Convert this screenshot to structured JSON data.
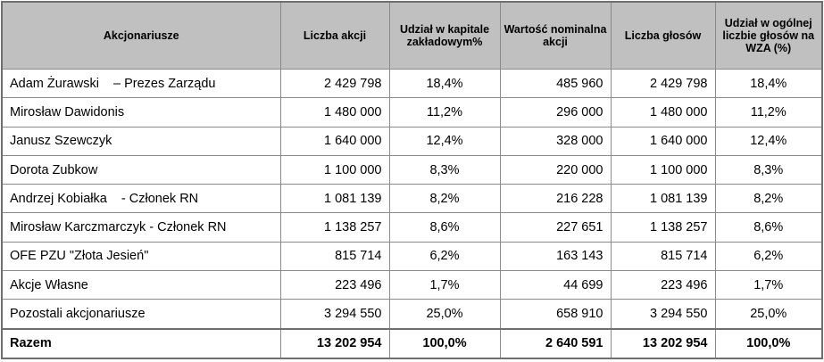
{
  "headers": {
    "c1": "Akcjonariusze",
    "c2": "Liczba akcji",
    "c3": "Udział w kapitale zakładowym%",
    "c4": "Wartość nominalna akcji",
    "c5": "Liczba głosów",
    "c6": "Udział w ogólnej liczbie głosów na WZA (%)"
  },
  "rows": [
    {
      "name": "Adam Żurawski    – Prezes Zarządu",
      "shares": "2 429 798",
      "capital_pct": "18,4%",
      "nominal": "485 960",
      "votes": "2 429 798",
      "votes_pct": "18,4%"
    },
    {
      "name": "Mirosław Dawidonis",
      "shares": "1 480 000",
      "capital_pct": "11,2%",
      "nominal": "296 000",
      "votes": "1 480 000",
      "votes_pct": "11,2%"
    },
    {
      "name": "Janusz Szewczyk",
      "shares": "1 640 000",
      "capital_pct": "12,4%",
      "nominal": "328 000",
      "votes": "1 640 000",
      "votes_pct": "12,4%"
    },
    {
      "name": "Dorota Zubkow",
      "shares": "1 100 000",
      "capital_pct": "8,3%",
      "nominal": "220 000",
      "votes": "1 100 000",
      "votes_pct": "8,3%"
    },
    {
      "name": "Andrzej Kobiałka    - Członek RN",
      "shares": "1 081 139",
      "capital_pct": "8,2%",
      "nominal": "216 228",
      "votes": "1 081 139",
      "votes_pct": "8,2%"
    },
    {
      "name": "Mirosław Karczmarczyk - Członek RN",
      "shares": "1 138 257",
      "capital_pct": "8,6%",
      "nominal": "227 651",
      "votes": "1 138 257",
      "votes_pct": "8,6%"
    },
    {
      "name": "OFE PZU \"Złota Jesień\"",
      "shares": "815 714",
      "capital_pct": "6,2%",
      "nominal": "163 143",
      "votes": "815 714",
      "votes_pct": "6,2%"
    },
    {
      "name": "Akcje Własne",
      "shares": "223 496",
      "capital_pct": "1,7%",
      "nominal": "44 699",
      "votes": "223 496",
      "votes_pct": "1,7%"
    },
    {
      "name": "Pozostali akcjonariusze",
      "shares": "3 294 550",
      "capital_pct": "25,0%",
      "nominal": "658 910",
      "votes": "3 294 550",
      "votes_pct": "25,0%"
    }
  ],
  "total": {
    "name": "Razem",
    "shares": "13 202 954",
    "capital_pct": "100,0%",
    "nominal": "2 640 591",
    "votes": "13 202 954",
    "votes_pct": "100,0%"
  }
}
